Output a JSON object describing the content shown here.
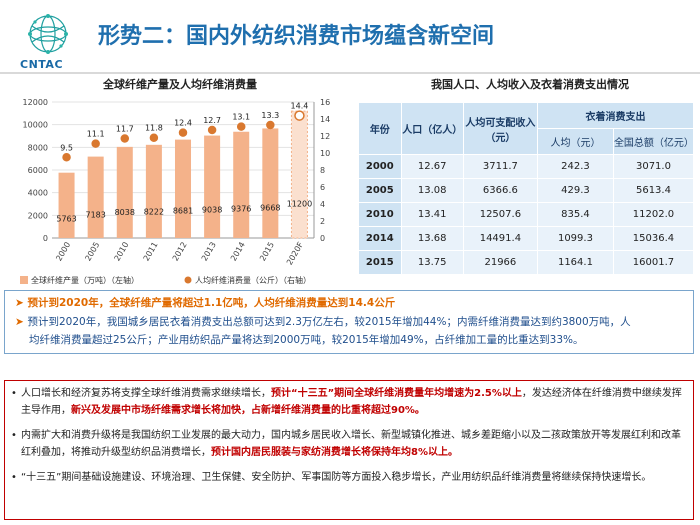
{
  "header": {
    "logo_text": "CNTAC",
    "title": "形势二：国内外纺织消费市场蕴含新空间"
  },
  "chart_data": {
    "type": "bar",
    "title": "全球纤维产量及人均纤维消费量",
    "categories": [
      "2000",
      "2005",
      "2010",
      "2011",
      "2012",
      "2013",
      "2014",
      "2015",
      "2020F"
    ],
    "series": [
      {
        "name": "全球纤维产量（万吨）（左轴）",
        "type": "bar",
        "axis": "left",
        "values": [
          5763,
          7183,
          8038,
          8222,
          8681,
          9038,
          9376,
          9668,
          11200
        ]
      },
      {
        "name": "人均纤维消费量（公斤）（右轴）",
        "type": "scatter",
        "axis": "right",
        "values": [
          9.5,
          11.1,
          11.7,
          11.8,
          12.4,
          12.7,
          13.1,
          13.3,
          14.4
        ]
      }
    ],
    "ylim_left": [
      0,
      12000
    ],
    "yticks_left": [
      "0",
      "2000",
      "4000",
      "6000",
      "8000",
      "10000",
      "12000"
    ],
    "ylim_right": [
      0,
      16
    ],
    "yticks_right": [
      "0",
      "2",
      "4",
      "6",
      "8",
      "10",
      "12",
      "14",
      "16"
    ],
    "legend_position": "bottom",
    "colors": {
      "bar": "#f4b28a",
      "bar_highlight": "#fbe0cf",
      "dot": "#d9782f"
    }
  },
  "table": {
    "title": "我国人口、人均收入及衣着消费支出情况",
    "header": {
      "year": "年份",
      "population": "人口（亿人）",
      "income": "人均可支配收入（元）",
      "clothing": "衣着消费支出",
      "per_capita": "人均（元）",
      "total": "全国总额（亿元）"
    },
    "rows": [
      {
        "year": "2000",
        "population": "12.67",
        "income": "3711.7",
        "per_capita": "242.3",
        "total": "3071.0"
      },
      {
        "year": "2005",
        "population": "13.08",
        "income": "6366.6",
        "per_capita": "429.3",
        "total": "5613.4"
      },
      {
        "year": "2010",
        "population": "13.41",
        "income": "12507.6",
        "per_capita": "835.4",
        "total": "11202.0"
      },
      {
        "year": "2014",
        "population": "13.68",
        "income": "14491.4",
        "per_capita": "1099.3",
        "total": "15036.4"
      },
      {
        "year": "2015",
        "population": "13.75",
        "income": "21966",
        "per_capita": "1164.1",
        "total": "16001.7"
      }
    ]
  },
  "middle": {
    "line1": "预计到2020年，全球纤维产量将超过1.1亿吨，人均纤维消费量达到14.4公斤",
    "line2": "预计到2020年，我国城乡居民衣着消费支出总额可达到2.3万亿左右，较2015年增加44%；内需纤维消费量达到约3800万吨，人",
    "line3": "均纤维消费量超过25公斤；产业用纺织品产量将达到2000万吨，较2015年增加49%，占纤维加工量的比重达到33%。"
  },
  "bottom": {
    "p1_a": "人口增长和经济复苏将支撑全球纤维消费需求继续增长，",
    "p1_b": "预计“十三五”期间全球纤维消费量年均增速为2.5%以上",
    "p1_c": "，发达经济体在纤维消费中继续发挥主导作用，",
    "p1_d": "新兴及发展中市场纤维需求增长将加快，占新增纤维消费量的比重将超过90%。",
    "p2_a": "内需扩大和消费升级将是我国纺织工业发展的最大动力，国内城乡居民收入增长、新型城镇化推进、城乡差距缩小以及二孩政策放开等发展红利和改革红利叠加，将推动升级型纺织品消费增长，",
    "p2_b": "预计国内居民服装与家纺消费增长将保持年均8%以上。",
    "p3": "“十三五”期间基础设施建设、环境治理、卫生保健、安全防护、军事国防等方面投入稳步增长，产业用纺织品纤维消费量将继续保持快速增长。"
  }
}
